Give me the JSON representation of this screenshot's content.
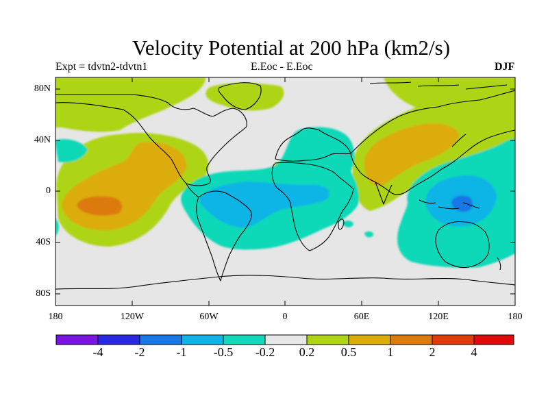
{
  "title": "Velocity Potential at 200 hPa (km2/s)",
  "subtitle_left": "Expt = tdvtn2-tdvtn1",
  "subtitle_center": "E.Eoc - E.Eoc",
  "subtitle_right": "DJF",
  "y_ticks": [
    "80N",
    "40N",
    "0",
    "40S",
    "80S"
  ],
  "x_ticks": [
    "180",
    "120W",
    "60W",
    "0",
    "60E",
    "120E",
    "180"
  ],
  "colorbar": {
    "labels": [
      "-4",
      "-2",
      "-1",
      "-0.5",
      "-0.2",
      "0.2",
      "0.5",
      "1",
      "2",
      "4"
    ],
    "colors": [
      "#7a14e0",
      "#2828e0",
      "#1878e6",
      "#10b4e6",
      "#10d8b8",
      "#e6e6e6",
      "#aed414",
      "#dcac0a",
      "#dc7a0a",
      "#e03c0a",
      "#e00a0a"
    ]
  },
  "colors": {
    "background": "#e6e6e6",
    "coastline": "#000000"
  }
}
